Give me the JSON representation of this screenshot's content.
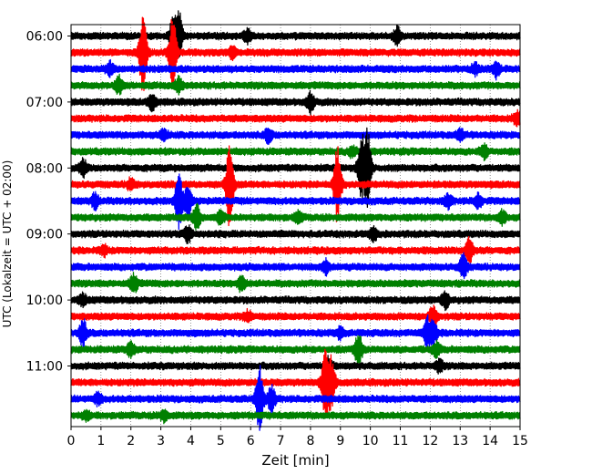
{
  "chart_data": {
    "type": "line",
    "title": "",
    "xlabel": "Zeit  [min]",
    "ylabel": "UTC (Lokalzeit = UTC + 02:00)",
    "xlim": [
      0,
      15
    ],
    "x_ticks": [
      "0",
      "1",
      "2",
      "3",
      "4",
      "5",
      "6",
      "7",
      "8",
      "9",
      "10",
      "11",
      "12",
      "13",
      "14",
      "15"
    ],
    "y_ticks": [
      "06:00",
      "07:00",
      "08:00",
      "09:00",
      "10:00",
      "11:00"
    ],
    "start_time": "06:00",
    "row_interval_minutes": 15,
    "grid": true,
    "series_colors": [
      "#000000",
      "#ff0000",
      "#0000ff",
      "#008000"
    ],
    "series": [
      {
        "time": "06:00",
        "color": "#000000",
        "events": [
          {
            "x": 3.6,
            "amp": 1.8
          },
          {
            "x": 3.4,
            "amp": 1.2
          },
          {
            "x": 5.9,
            "amp": 0.5
          },
          {
            "x": 10.9,
            "amp": 0.6
          }
        ]
      },
      {
        "time": "06:15",
        "color": "#ff0000",
        "events": [
          {
            "x": 2.4,
            "amp": 3.0
          },
          {
            "x": 3.4,
            "amp": 2.8
          },
          {
            "x": 5.4,
            "amp": 0.4
          }
        ]
      },
      {
        "time": "06:30",
        "color": "#0000ff",
        "events": [
          {
            "x": 1.3,
            "amp": 0.5
          },
          {
            "x": 13.5,
            "amp": 0.4
          },
          {
            "x": 14.2,
            "amp": 0.6
          }
        ]
      },
      {
        "time": "06:45",
        "color": "#008000",
        "events": [
          {
            "x": 1.6,
            "amp": 0.6
          },
          {
            "x": 3.6,
            "amp": 0.5
          }
        ]
      },
      {
        "time": "07:00",
        "color": "#000000",
        "events": [
          {
            "x": 2.7,
            "amp": 0.6
          },
          {
            "x": 8.0,
            "amp": 0.7
          }
        ]
      },
      {
        "time": "07:15",
        "color": "#ff0000",
        "events": [
          {
            "x": 14.9,
            "amp": 0.5
          }
        ]
      },
      {
        "time": "07:30",
        "color": "#0000ff",
        "events": [
          {
            "x": 3.1,
            "amp": 0.4
          },
          {
            "x": 6.6,
            "amp": 0.5
          },
          {
            "x": 13.0,
            "amp": 0.4
          }
        ]
      },
      {
        "time": "07:45",
        "color": "#008000",
        "events": [
          {
            "x": 13.8,
            "amp": 0.5
          },
          {
            "x": 9.4,
            "amp": 0.4
          }
        ]
      },
      {
        "time": "08:00",
        "color": "#000000",
        "events": [
          {
            "x": 9.7,
            "amp": 2.2
          },
          {
            "x": 9.9,
            "amp": 2.8
          },
          {
            "x": 0.4,
            "amp": 0.6
          }
        ]
      },
      {
        "time": "08:15",
        "color": "#ff0000",
        "events": [
          {
            "x": 5.3,
            "amp": 3.2
          },
          {
            "x": 8.9,
            "amp": 3.0
          },
          {
            "x": 2.0,
            "amp": 0.4
          }
        ]
      },
      {
        "time": "08:30",
        "color": "#0000ff",
        "events": [
          {
            "x": 3.6,
            "amp": 2.0
          },
          {
            "x": 3.9,
            "amp": 1.2
          },
          {
            "x": 0.8,
            "amp": 0.5
          },
          {
            "x": 12.6,
            "amp": 0.5
          },
          {
            "x": 13.6,
            "amp": 0.5
          }
        ]
      },
      {
        "time": "08:45",
        "color": "#008000",
        "events": [
          {
            "x": 4.2,
            "amp": 0.9
          },
          {
            "x": 5.0,
            "amp": 0.5
          },
          {
            "x": 7.6,
            "amp": 0.4
          },
          {
            "x": 14.4,
            "amp": 0.5
          }
        ]
      },
      {
        "time": "09:00",
        "color": "#000000",
        "events": [
          {
            "x": 3.9,
            "amp": 0.6
          },
          {
            "x": 10.1,
            "amp": 0.5
          }
        ]
      },
      {
        "time": "09:15",
        "color": "#ff0000",
        "events": [
          {
            "x": 13.3,
            "amp": 1.0
          },
          {
            "x": 1.1,
            "amp": 0.3
          }
        ]
      },
      {
        "time": "09:30",
        "color": "#0000ff",
        "events": [
          {
            "x": 13.1,
            "amp": 0.9
          },
          {
            "x": 8.5,
            "amp": 0.5
          }
        ]
      },
      {
        "time": "09:45",
        "color": "#008000",
        "events": [
          {
            "x": 2.1,
            "amp": 0.7
          },
          {
            "x": 5.7,
            "amp": 0.6
          }
        ]
      },
      {
        "time": "10:00",
        "color": "#000000",
        "events": [
          {
            "x": 12.5,
            "amp": 0.6
          },
          {
            "x": 0.4,
            "amp": 0.4
          }
        ]
      },
      {
        "time": "10:15",
        "color": "#ff0000",
        "events": [
          {
            "x": 12.1,
            "amp": 0.8
          },
          {
            "x": 5.9,
            "amp": 0.4
          }
        ]
      },
      {
        "time": "10:30",
        "color": "#0000ff",
        "events": [
          {
            "x": 0.4,
            "amp": 1.0
          },
          {
            "x": 11.9,
            "amp": 1.1
          },
          {
            "x": 12.1,
            "amp": 0.9
          },
          {
            "x": 9.0,
            "amp": 0.4
          }
        ]
      },
      {
        "time": "10:45",
        "color": "#008000",
        "events": [
          {
            "x": 9.6,
            "amp": 1.2
          },
          {
            "x": 12.2,
            "amp": 0.5
          },
          {
            "x": 2.0,
            "amp": 0.5
          }
        ]
      },
      {
        "time": "11:00",
        "color": "#000000",
        "events": [
          {
            "x": 8.6,
            "amp": 0.6
          },
          {
            "x": 12.3,
            "amp": 0.4
          }
        ]
      },
      {
        "time": "11:15",
        "color": "#ff0000",
        "events": [
          {
            "x": 8.5,
            "amp": 2.6
          },
          {
            "x": 8.7,
            "amp": 1.8
          }
        ]
      },
      {
        "time": "11:30",
        "color": "#0000ff",
        "events": [
          {
            "x": 6.3,
            "amp": 2.6
          },
          {
            "x": 6.7,
            "amp": 1.0
          },
          {
            "x": 0.9,
            "amp": 0.4
          }
        ]
      },
      {
        "time": "11:45",
        "color": "#008000",
        "events": [
          {
            "x": 3.1,
            "amp": 0.4
          },
          {
            "x": 0.5,
            "amp": 0.3
          }
        ]
      }
    ]
  }
}
